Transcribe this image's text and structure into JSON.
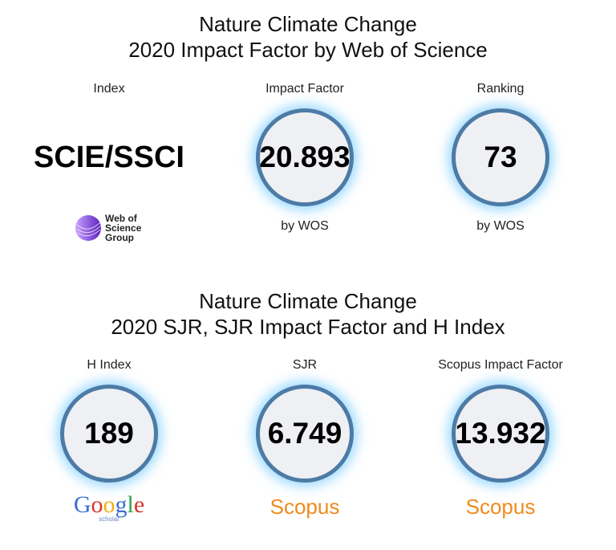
{
  "sections": [
    {
      "title": [
        "Nature Climate Change",
        "2020 Impact Factor by Web of Science"
      ],
      "cards": [
        {
          "label": "Index",
          "value": "SCIE/SSCI",
          "logo": [
            "Web of",
            "Science",
            "Group"
          ]
        },
        {
          "label": "Impact Factor",
          "value": "20.893",
          "note": "by WOS"
        },
        {
          "label": "Ranking",
          "value": "73",
          "note": "by WOS"
        }
      ]
    },
    {
      "title": [
        "Nature Climate Change",
        "2020 SJR, SJR Impact Factor and H Index"
      ],
      "cards": [
        {
          "label": "H Index",
          "value": "189",
          "logo": [
            "Google",
            "scholar"
          ]
        },
        {
          "label": "SJR",
          "value": "6.749",
          "logo": [
            "Scopus"
          ]
        },
        {
          "label": "Scopus Impact Factor",
          "value": "13.932",
          "logo": [
            "Scopus"
          ]
        }
      ]
    }
  ]
}
